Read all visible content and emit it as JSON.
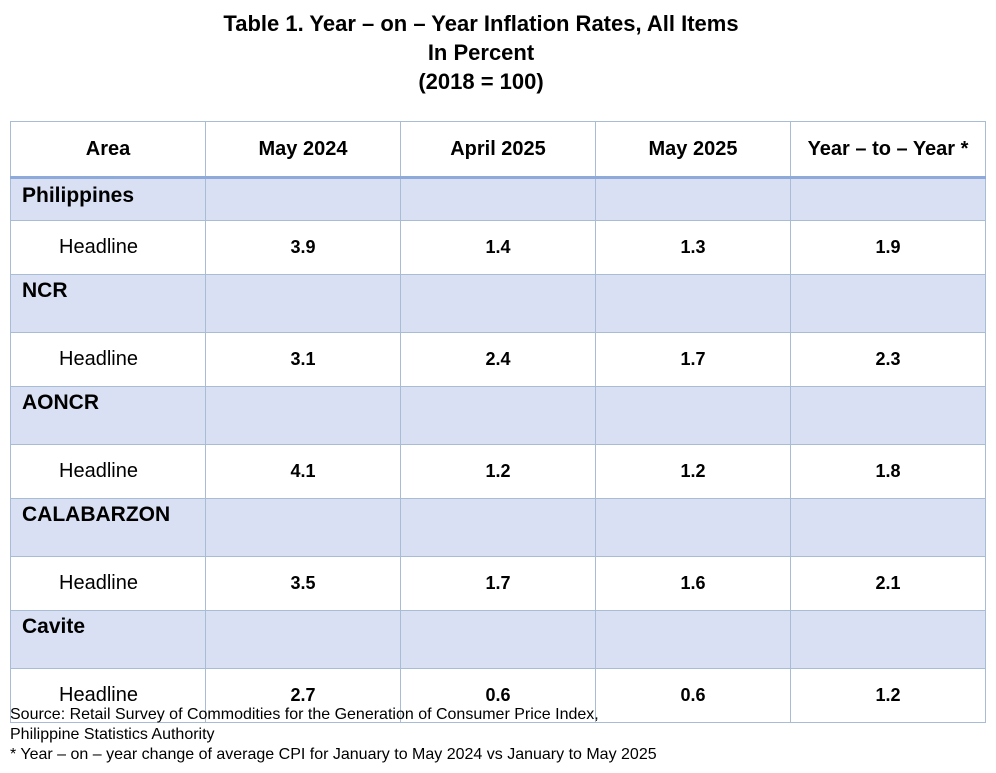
{
  "title": {
    "line1": "Table 1. Year – on – Year Inflation Rates, All Items",
    "line2": "In Percent",
    "line3": "(2018 = 100)"
  },
  "table": {
    "headers": [
      "Area",
      "May 2024",
      "April 2025",
      "May 2025",
      "Year – to – Year *"
    ],
    "groups": [
      {
        "name": "Philippines",
        "item": "Headline",
        "values": [
          "3.9",
          "1.4",
          "1.3",
          "1.9"
        ]
      },
      {
        "name": "NCR",
        "item": "Headline",
        "values": [
          "3.1",
          "2.4",
          "1.7",
          "2.3"
        ]
      },
      {
        "name": "AONCR",
        "item": "Headline",
        "values": [
          "4.1",
          "1.2",
          "1.2",
          "1.8"
        ]
      },
      {
        "name": "CALABARZON",
        "item": "Headline",
        "values": [
          "3.5",
          "1.7",
          "1.6",
          "2.1"
        ]
      },
      {
        "name": "Cavite",
        "item": "Headline",
        "values": [
          "2.7",
          "0.6",
          "0.6",
          "1.2"
        ]
      }
    ]
  },
  "notes": {
    "source_line1": "Source: Retail Survey of Commodities for the Generation of Consumer Price Index,",
    "source_line2": "Philippine Statistics Authority",
    "footnote": "* Year – on – year change of average CPI for January to May 2024 vs January to May 2025"
  },
  "colors": {
    "group_row_fill": "#d9e0f3",
    "border": "#a9bcd6",
    "header_rule": "#8eaadb"
  }
}
